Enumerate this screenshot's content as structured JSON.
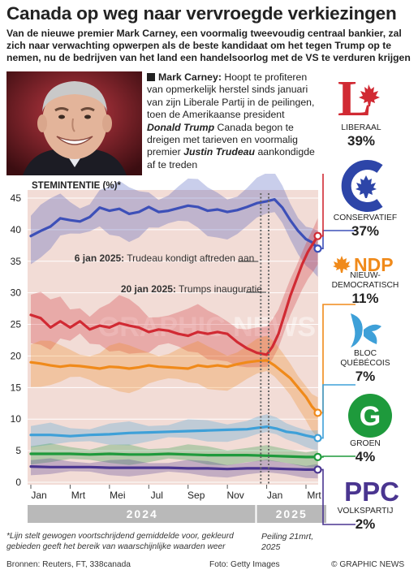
{
  "header": {
    "title": "Canada op weg naar vervroegde verkiezingen",
    "subtitle": "Van de nieuwe premier Mark Carney, een voormalig tweevoudig centraal bankier, zal zich naar verwachting opwerpen als de beste kandidaat om het tegen Trump op te nemen, nu de bedrijven van het land een handelsoorlog met de VS te verduren krijgen"
  },
  "intro": {
    "lead": "Mark Carney:",
    "t1": " Hoopt te profiteren van opmerkelijk herstel sinds januari van zijn Liberale Partij in de peilingen, toen de Amerikaanse president ",
    "trump": "Donald Trump",
    "t2": " Canada begon te dreigen met tarieven en voormalig premier ",
    "trudeau": "Justin Trudeau",
    "t3": " aankondigde af te treden"
  },
  "colors": {
    "liberal": "#d12a33",
    "conservative": "#3d50b8",
    "ndp": "#f08a1a",
    "bloc": "#3ea0d8",
    "green": "#1e9a3c",
    "ppc": "#4a3590",
    "chart_bg": "#f2dcd6",
    "gray": "#b9b9b9"
  },
  "chart_data": {
    "type": "line",
    "ylabel": "STEMINTENTIE (%)*",
    "ylim": [
      0,
      47
    ],
    "yticks": [
      0,
      5,
      10,
      15,
      20,
      25,
      30,
      35,
      40,
      45
    ],
    "xlim": [
      0,
      14.7
    ],
    "xticks": [
      {
        "label": "Jan",
        "x": 0
      },
      {
        "label": "Mrt",
        "x": 2
      },
      {
        "label": "Mei",
        "x": 4
      },
      {
        "label": "Jul",
        "x": 6
      },
      {
        "label": "Sep",
        "x": 8
      },
      {
        "label": "Nov",
        "x": 10
      },
      {
        "label": "Jan",
        "x": 12
      },
      {
        "label": "Mrt",
        "x": 14
      }
    ],
    "years": [
      {
        "label": "2024",
        "from": 0,
        "to": 11.5
      },
      {
        "label": "2025",
        "from": 11.5,
        "to": 14.7
      }
    ],
    "annotations": [
      {
        "x": 11.7,
        "date": "6 jan 2025:",
        "text": " Trudeau kondigt aftreden aan"
      },
      {
        "x": 12.1,
        "date": "20 jan 2025:",
        "text": " Trumps inauguratie"
      }
    ],
    "series": [
      {
        "name": "CONSERVATIEF",
        "color_key": "conservative",
        "band": 3.2,
        "points": [
          [
            0,
            39
          ],
          [
            0.5,
            39.8
          ],
          [
            1,
            40.5
          ],
          [
            1.5,
            41.8
          ],
          [
            2,
            41.5
          ],
          [
            2.5,
            41.3
          ],
          [
            3,
            42
          ],
          [
            3.5,
            43.5
          ],
          [
            4,
            43
          ],
          [
            4.5,
            43.3
          ],
          [
            5,
            42.5
          ],
          [
            5.5,
            42.8
          ],
          [
            6,
            43.6
          ],
          [
            6.5,
            42.8
          ],
          [
            7,
            43
          ],
          [
            7.5,
            43.4
          ],
          [
            8,
            43.8
          ],
          [
            8.5,
            43.6
          ],
          [
            9,
            43
          ],
          [
            9.5,
            43.2
          ],
          [
            10,
            42.8
          ],
          [
            10.5,
            43.1
          ],
          [
            11,
            43.6
          ],
          [
            11.5,
            44.2
          ],
          [
            12,
            44.5
          ],
          [
            12.4,
            44.8
          ],
          [
            12.8,
            43.5
          ],
          [
            13.2,
            41.5
          ],
          [
            13.6,
            39.8
          ],
          [
            14,
            38.5
          ],
          [
            14.3,
            38
          ],
          [
            14.6,
            37
          ]
        ]
      },
      {
        "name": "LIBERAAL",
        "color_key": "liberal",
        "band": 3.2,
        "points": [
          [
            0,
            26.5
          ],
          [
            0.5,
            26
          ],
          [
            1,
            24.5
          ],
          [
            1.5,
            25.5
          ],
          [
            2,
            24.5
          ],
          [
            2.5,
            25.5
          ],
          [
            3,
            24.2
          ],
          [
            3.5,
            24.8
          ],
          [
            4,
            24.5
          ],
          [
            4.5,
            25.2
          ],
          [
            5,
            24.8
          ],
          [
            5.5,
            24.5
          ],
          [
            6,
            23.8
          ],
          [
            6.5,
            24.2
          ],
          [
            7,
            24
          ],
          [
            7.5,
            23.5
          ],
          [
            8,
            23.2
          ],
          [
            8.5,
            23.8
          ],
          [
            9,
            23.5
          ],
          [
            9.5,
            23.8
          ],
          [
            10,
            23.5
          ],
          [
            10.5,
            22.2
          ],
          [
            11,
            21.2
          ],
          [
            11.5,
            20.5
          ],
          [
            12,
            20.2
          ],
          [
            12.3,
            21.5
          ],
          [
            12.6,
            23.5
          ],
          [
            12.9,
            26.5
          ],
          [
            13.2,
            29.5
          ],
          [
            13.5,
            32
          ],
          [
            13.8,
            34.5
          ],
          [
            14.1,
            36.5
          ],
          [
            14.4,
            38
          ],
          [
            14.6,
            39
          ]
        ]
      },
      {
        "name": "NIEUW-DEMOCRATISCH",
        "color_key": "ndp",
        "band": 2.8,
        "points": [
          [
            0,
            19
          ],
          [
            0.5,
            18.8
          ],
          [
            1,
            18.5
          ],
          [
            1.5,
            18.3
          ],
          [
            2,
            18.5
          ],
          [
            2.5,
            18.4
          ],
          [
            3,
            18.2
          ],
          [
            3.5,
            18
          ],
          [
            4,
            18.3
          ],
          [
            4.5,
            18.2
          ],
          [
            5,
            18
          ],
          [
            5.5,
            18.2
          ],
          [
            6,
            18.5
          ],
          [
            6.5,
            18.3
          ],
          [
            7,
            18.2
          ],
          [
            7.5,
            18.1
          ],
          [
            8,
            18
          ],
          [
            8.5,
            18.5
          ],
          [
            9,
            18.3
          ],
          [
            9.5,
            18.5
          ],
          [
            10,
            18.3
          ],
          [
            10.5,
            18.7
          ],
          [
            11,
            19
          ],
          [
            11.5,
            19.2
          ],
          [
            12,
            19.3
          ],
          [
            12.4,
            18.5
          ],
          [
            12.8,
            17.5
          ],
          [
            13.2,
            16.5
          ],
          [
            13.6,
            15
          ],
          [
            14,
            13.5
          ],
          [
            14.3,
            12
          ],
          [
            14.6,
            11
          ]
        ]
      },
      {
        "name": "BLOC QUÉBÉCOIS",
        "color_key": "bloc",
        "band": 1.4,
        "points": [
          [
            0,
            7.5
          ],
          [
            1,
            7.5
          ],
          [
            2,
            7.3
          ],
          [
            3,
            7.5
          ],
          [
            4,
            7.6
          ],
          [
            5,
            7.8
          ],
          [
            6,
            7.9
          ],
          [
            7,
            8
          ],
          [
            8,
            8.1
          ],
          [
            9,
            8.2
          ],
          [
            10,
            8.3
          ],
          [
            11,
            8.4
          ],
          [
            11.5,
            8.6
          ],
          [
            12,
            8.8
          ],
          [
            12.5,
            8.5
          ],
          [
            13,
            8
          ],
          [
            13.5,
            7.8
          ],
          [
            14,
            7.4
          ],
          [
            14.3,
            7.2
          ],
          [
            14.6,
            7
          ]
        ]
      },
      {
        "name": "GROEN",
        "color_key": "green",
        "band": 1.2,
        "points": [
          [
            0,
            4.5
          ],
          [
            1,
            4.5
          ],
          [
            2,
            4.5
          ],
          [
            3,
            4.4
          ],
          [
            4,
            4.5
          ],
          [
            5,
            4.4
          ],
          [
            6,
            4.4
          ],
          [
            7,
            4.5
          ],
          [
            8,
            4.4
          ],
          [
            9,
            4.3
          ],
          [
            10,
            4.3
          ],
          [
            11,
            4.3
          ],
          [
            12,
            4.2
          ],
          [
            13,
            4.1
          ],
          [
            14,
            4
          ],
          [
            14.6,
            4
          ]
        ]
      },
      {
        "name": "VOLKSPARTIJ",
        "color_key": "ppc",
        "band": 1,
        "points": [
          [
            0,
            2.5
          ],
          [
            1,
            2.4
          ],
          [
            2,
            2.4
          ],
          [
            3,
            2.4
          ],
          [
            4,
            2.3
          ],
          [
            5,
            2.3
          ],
          [
            6,
            2.3
          ],
          [
            7,
            2.3
          ],
          [
            8,
            2.2
          ],
          [
            9,
            2.2
          ],
          [
            10,
            2.1
          ],
          [
            11,
            2.2
          ],
          [
            12,
            2.2
          ],
          [
            13,
            2.1
          ],
          [
            14,
            2
          ],
          [
            14.6,
            2
          ]
        ]
      }
    ]
  },
  "parties": {
    "liberal": {
      "name": "LIBERAAL",
      "pct": "39%",
      "logo_letter": "L"
    },
    "conservative": {
      "name": "CONSERVATIEF",
      "pct": "37%"
    },
    "ndp": {
      "name1": "NIEUW-",
      "name2": "DEMOCRATISCH",
      "pct": "11%",
      "logo_text": "NDP"
    },
    "bloc": {
      "name1": "BLOC",
      "name2": "QUÉBÉCOIS",
      "pct": "7%"
    },
    "green": {
      "name": "GROEN",
      "pct": "4%",
      "logo_letter": "G"
    },
    "ppc": {
      "name": "VOLKSPARTIJ",
      "pct": "2%",
      "logo_text": "PPC"
    }
  },
  "footer": {
    "note": "*Lijn stelt gewogen voortschrijdend gemiddelde voor, gekleurd gebieden geeft het bereik van waarschijnlijke waarden weer",
    "poll_date": "Peiling 21mrt, 2025",
    "sources": "Bronnen: Reuters, FT, 338canada",
    "photo_credit": "Foto: Getty Images",
    "copyright": "© GRAPHIC NEWS",
    "watermark": "GRAPHIC NEWS"
  }
}
